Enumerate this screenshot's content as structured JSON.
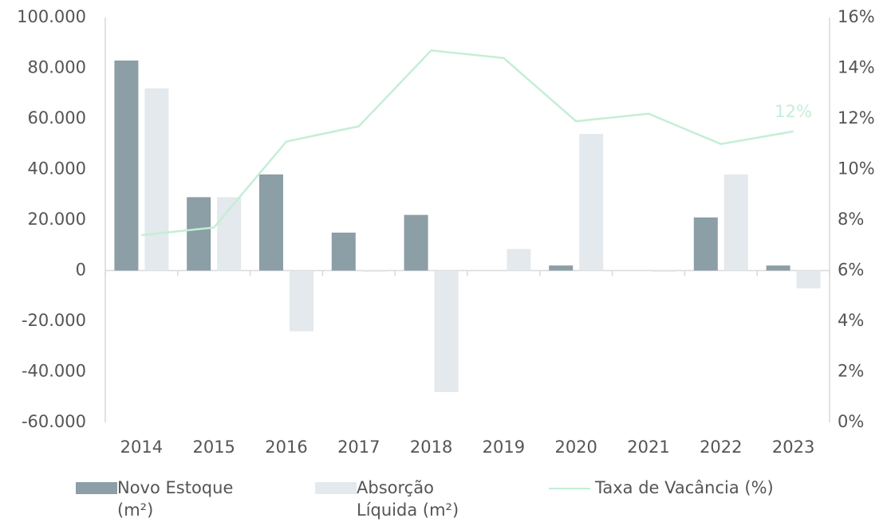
{
  "chart_data": {
    "type": "bar-line",
    "categories": [
      "2014",
      "2015",
      "2016",
      "2017",
      "2018",
      "2019",
      "2020",
      "2021",
      "2022",
      "2023"
    ],
    "series": [
      {
        "name": "Novo Estoque (m²)",
        "type": "bar",
        "color": "#8c9ea6",
        "values": [
          83000,
          29000,
          38000,
          15000,
          22000,
          0,
          2000,
          0,
          21000,
          2000
        ]
      },
      {
        "name": "Absorção Líquida (m²)",
        "type": "bar",
        "color": "#e3e9ec",
        "values": [
          72000,
          29000,
          -24000,
          -500,
          -48000,
          8500,
          54000,
          -500,
          38000,
          -7000
        ]
      },
      {
        "name": "Taxa de Vacância (%)",
        "type": "line",
        "axis": "y2",
        "color": "#c4eed6",
        "values": [
          7.4,
          7.7,
          11.1,
          11.7,
          14.7,
          14.4,
          11.9,
          12.2,
          11.0,
          11.5
        ],
        "value_labels": [
          null,
          null,
          null,
          null,
          null,
          null,
          null,
          null,
          null,
          "12%"
        ]
      }
    ],
    "ylim": [
      -60000,
      100000
    ],
    "yticks": [
      {
        "value": -60000,
        "label": "-60.000"
      },
      {
        "value": -40000,
        "label": "-40.000"
      },
      {
        "value": -20000,
        "label": "-20.000"
      },
      0,
      {
        "value": 20000,
        "label": "20.000"
      },
      {
        "value": 40000,
        "label": "40.000"
      },
      {
        "value": 60000,
        "label": "60.000"
      },
      {
        "value": 80000,
        "label": "80.000"
      },
      {
        "value": 100000,
        "label": "100.000"
      }
    ],
    "y2lim": [
      0,
      16
    ],
    "y2ticks": [
      {
        "value": 0,
        "label": "0%"
      },
      {
        "value": 2,
        "label": "2%"
      },
      {
        "value": 4,
        "label": "4%"
      },
      {
        "value": 6,
        "label": "6%"
      },
      {
        "value": 8,
        "label": "8%"
      },
      {
        "value": 10,
        "label": "10%"
      },
      {
        "value": 12,
        "label": "12%"
      },
      {
        "value": 14,
        "label": "14%"
      },
      {
        "value": 16,
        "label": "16%"
      }
    ],
    "legend": "bottom"
  }
}
